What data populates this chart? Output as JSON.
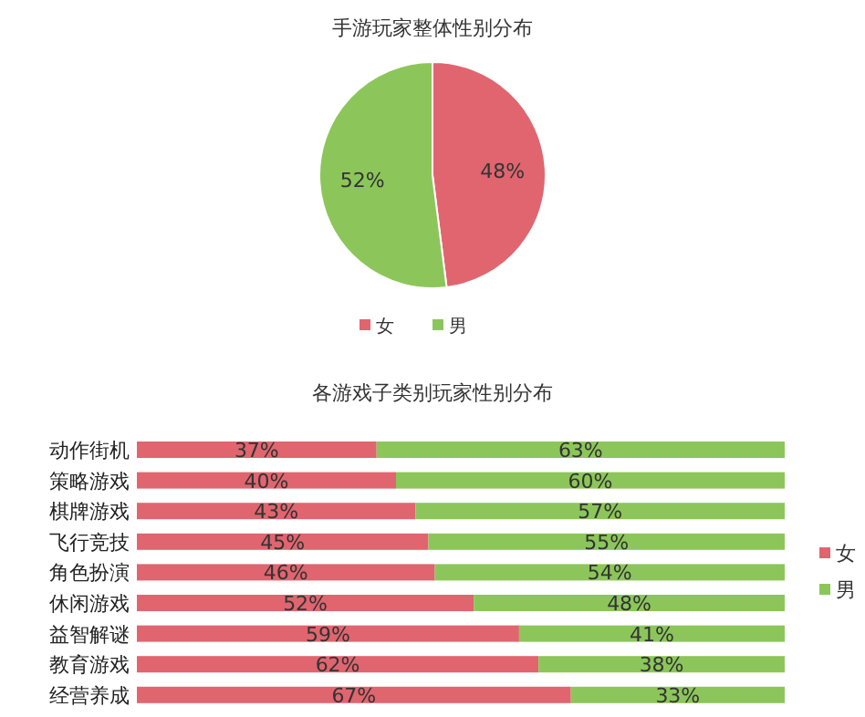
{
  "chart_data": [
    {
      "type": "pie",
      "title": "手游玩家整体性别分布",
      "categories": [
        "女",
        "男"
      ],
      "values": [
        48,
        52
      ],
      "value_labels": [
        "48%",
        "52%"
      ],
      "colors": [
        "#e0656f",
        "#8cc65a"
      ],
      "legend": "bottom"
    },
    {
      "type": "bar",
      "title": "各游戏子类别玩家性别分布",
      "orientation": "horizontal",
      "stacked": true,
      "legend": "right",
      "categories": [
        "动作街机",
        "策略游戏",
        "棋牌游戏",
        "飞行竞技",
        "角色扮演",
        "休闲游戏",
        "益智解谜",
        "教育游戏",
        "经营养成"
      ],
      "series": [
        {
          "name": "女",
          "color": "#e0656f",
          "values": [
            37,
            40,
            43,
            45,
            46,
            52,
            59,
            62,
            67
          ],
          "value_labels": [
            "37%",
            "40%",
            "43%",
            "45%",
            "46%",
            "52%",
            "59%",
            "62%",
            "67%"
          ]
        },
        {
          "name": "男",
          "color": "#8cc65a",
          "values": [
            63,
            60,
            57,
            55,
            54,
            48,
            41,
            38,
            33
          ],
          "value_labels": [
            "63%",
            "60%",
            "57%",
            "55%",
            "54%",
            "48%",
            "41%",
            "38%",
            "33%"
          ]
        }
      ]
    }
  ]
}
